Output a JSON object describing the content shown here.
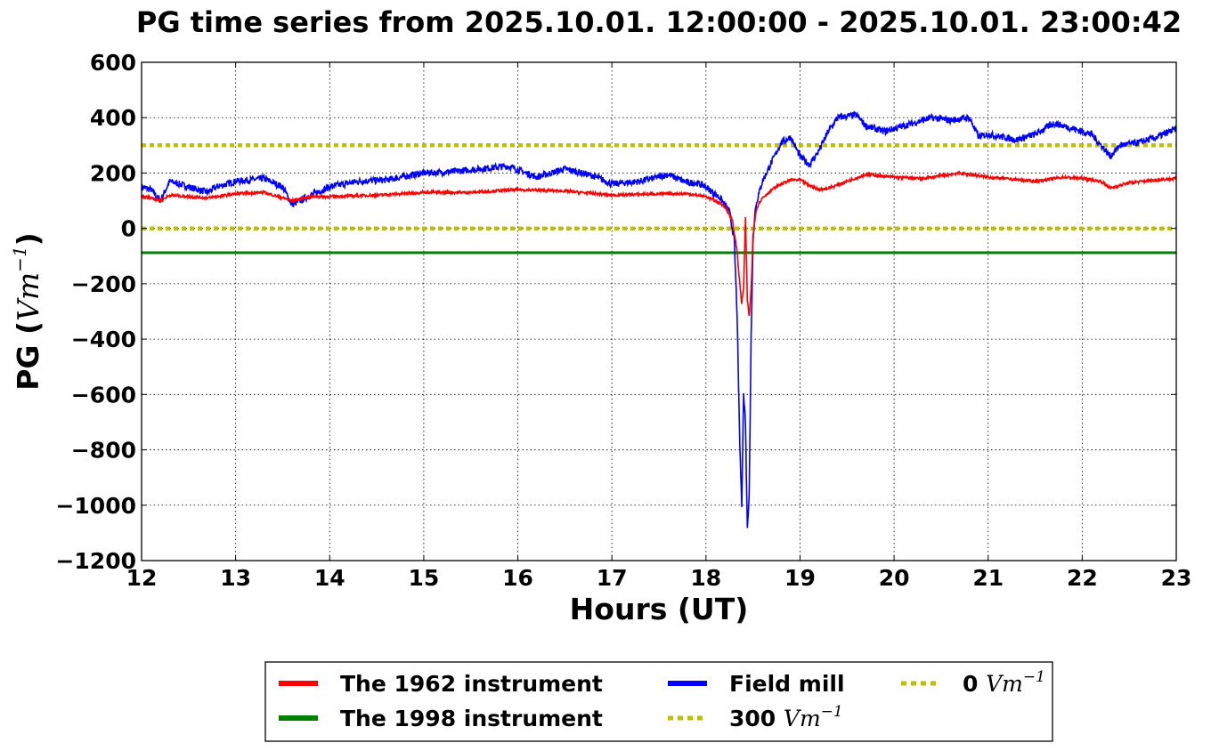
{
  "chart_data": {
    "type": "line",
    "title": "PG time series from 2025.10.01. 12:00:00 - 2025.10.01. 23:00:42",
    "xlabel": "Hours (UT)",
    "ylabel_text": "PG (",
    "ylabel_unit": "Vm",
    "ylabel_exp": "−1",
    "ylabel_close": ")",
    "xlim": [
      12,
      23
    ],
    "ylim": [
      -1200,
      600
    ],
    "x_ticks": [
      12,
      13,
      14,
      15,
      16,
      17,
      18,
      19,
      20,
      21,
      22,
      23
    ],
    "y_ticks": [
      600,
      400,
      200,
      0,
      -200,
      -400,
      -600,
      -800,
      -1000,
      -1200
    ],
    "y_tick_labels": [
      "600",
      "400",
      "200",
      "0",
      "−200",
      "−400",
      "−600",
      "−800",
      "−1000",
      "−1200"
    ],
    "grid": true,
    "legend_position": "below-center",
    "series": [
      {
        "name": "The 1962 instrument",
        "color": "#ff0000",
        "x": [
          12.0,
          12.1,
          12.2,
          12.3,
          12.5,
          12.7,
          13.0,
          13.3,
          13.6,
          13.8,
          14.0,
          14.5,
          15.0,
          15.5,
          16.0,
          16.5,
          17.0,
          17.5,
          17.8,
          18.0,
          18.1,
          18.2,
          18.28,
          18.33,
          18.36,
          18.38,
          18.4,
          18.42,
          18.44,
          18.46,
          18.48,
          18.5,
          18.53,
          18.56,
          18.6,
          18.7,
          18.8,
          18.9,
          19.0,
          19.1,
          19.2,
          19.3,
          19.5,
          19.7,
          20.0,
          20.3,
          20.7,
          21.0,
          21.5,
          21.8,
          22.0,
          22.2,
          22.3,
          22.5,
          22.8,
          23.0
        ],
        "y": [
          115,
          110,
          100,
          120,
          115,
          110,
          125,
          130,
          100,
          115,
          115,
          120,
          130,
          130,
          140,
          135,
          120,
          125,
          125,
          115,
          100,
          80,
          30,
          -80,
          -200,
          -270,
          -220,
          40,
          -260,
          -320,
          -220,
          -30,
          60,
          90,
          110,
          140,
          160,
          175,
          175,
          155,
          140,
          145,
          170,
          195,
          185,
          180,
          200,
          185,
          170,
          185,
          180,
          170,
          145,
          165,
          175,
          180
        ]
      },
      {
        "name": "The 1998 instrument",
        "color": "#008000",
        "x": [
          12.0,
          23.0
        ],
        "y": [
          -88,
          -88
        ]
      },
      {
        "name": "Field mill",
        "color": "#0000ff",
        "x": [
          12.0,
          12.1,
          12.2,
          12.3,
          12.5,
          12.7,
          12.8,
          13.0,
          13.3,
          13.5,
          13.6,
          13.8,
          14.0,
          14.3,
          14.6,
          15.0,
          15.3,
          15.6,
          15.9,
          16.2,
          16.5,
          16.8,
          17.0,
          17.3,
          17.6,
          17.8,
          17.9,
          18.0,
          18.15,
          18.25,
          18.3,
          18.33,
          18.36,
          18.38,
          18.4,
          18.42,
          18.44,
          18.46,
          18.48,
          18.5,
          18.52,
          18.55,
          18.6,
          18.7,
          18.8,
          18.9,
          19.0,
          19.1,
          19.2,
          19.3,
          19.4,
          19.6,
          19.7,
          19.9,
          20.0,
          20.2,
          20.4,
          20.6,
          20.8,
          20.9,
          21.0,
          21.3,
          21.5,
          21.7,
          21.9,
          22.1,
          22.3,
          22.4,
          22.6,
          22.8,
          23.0
        ],
        "y": [
          150,
          140,
          100,
          170,
          150,
          130,
          150,
          170,
          180,
          150,
          85,
          120,
          150,
          170,
          175,
          200,
          205,
          215,
          225,
          185,
          215,
          190,
          160,
          170,
          195,
          165,
          165,
          150,
          110,
          60,
          -40,
          -300,
          -780,
          -1000,
          -600,
          -700,
          -1090,
          -950,
          -400,
          -50,
          60,
          110,
          170,
          240,
          310,
          330,
          260,
          230,
          280,
          350,
          400,
          410,
          370,
          350,
          360,
          380,
          400,
          390,
          400,
          330,
          340,
          320,
          340,
          380,
          360,
          340,
          260,
          300,
          310,
          330,
          360
        ]
      },
      {
        "name": "300 Vm−1",
        "label_text": "300",
        "label_unit": "Vm",
        "label_exp": "−1",
        "color": "#bfbf00",
        "style": "dotted",
        "x": [
          12.0,
          23.0
        ],
        "y": [
          300,
          300
        ]
      },
      {
        "name": "0 Vm−1",
        "label_text": "0",
        "label_unit": "Vm",
        "label_exp": "−1",
        "color": "#bfbf00",
        "style": "dotted",
        "x": [
          12.0,
          23.0
        ],
        "y": [
          0,
          0
        ]
      }
    ]
  }
}
